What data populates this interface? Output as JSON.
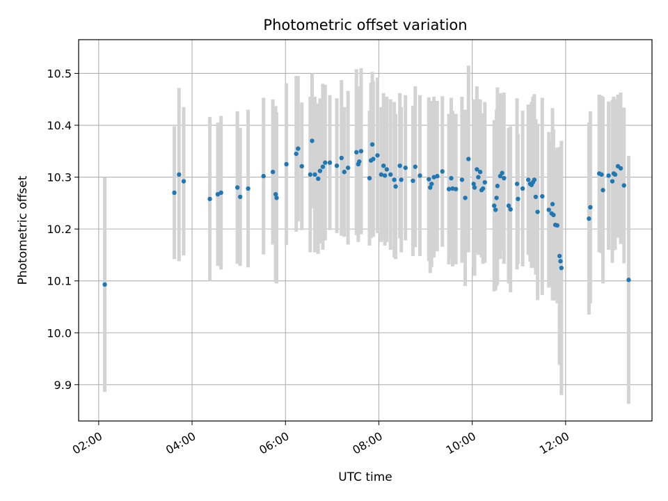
{
  "chart_data": {
    "type": "scatter",
    "title": "Photometric offset variation",
    "xlabel": "UTC time",
    "ylabel": "Photometric offset",
    "x_unit": "hours UTC",
    "xlim": [
      1.57,
      13.85
    ],
    "ylim": [
      9.83,
      10.565
    ],
    "x_ticks": [
      {
        "value": 2,
        "label": "02:00"
      },
      {
        "value": 4,
        "label": "04:00"
      },
      {
        "value": 6,
        "label": "06:00"
      },
      {
        "value": 8,
        "label": "08:00"
      },
      {
        "value": 10,
        "label": "10:00"
      },
      {
        "value": 12,
        "label": "12:00"
      }
    ],
    "y_ticks": [
      {
        "value": 9.9,
        "label": "9.9"
      },
      {
        "value": 10.0,
        "label": "10.0"
      },
      {
        "value": 10.1,
        "label": "10.1"
      },
      {
        "value": 10.2,
        "label": "10.2"
      },
      {
        "value": 10.3,
        "label": "10.3"
      },
      {
        "value": 10.4,
        "label": "10.4"
      },
      {
        "value": 10.5,
        "label": "10.5"
      }
    ],
    "grid": true,
    "marker_color": "#1f77b4",
    "errorbar_color": "#d3d3d3",
    "points": [
      [
        2.13,
        10.093,
        0.207
      ],
      [
        3.62,
        10.27,
        0.128
      ],
      [
        3.72,
        10.305,
        0.167
      ],
      [
        3.82,
        10.292,
        0.143
      ],
      [
        4.38,
        10.258,
        0.158
      ],
      [
        4.55,
        10.267,
        0.138
      ],
      [
        4.62,
        10.27,
        0.148
      ],
      [
        4.97,
        10.28,
        0.147
      ],
      [
        5.03,
        10.262,
        0.133
      ],
      [
        5.2,
        10.278,
        0.152
      ],
      [
        5.53,
        10.302,
        0.151
      ],
      [
        5.73,
        10.31,
        0.14
      ],
      [
        5.79,
        10.267,
        0.17
      ],
      [
        5.81,
        10.26,
        0.165
      ],
      [
        6.02,
        10.325,
        0.156
      ],
      [
        6.23,
        10.345,
        0.15
      ],
      [
        6.27,
        10.355,
        0.14
      ],
      [
        6.35,
        10.321,
        0.123
      ],
      [
        6.53,
        10.305,
        0.15
      ],
      [
        6.57,
        10.37,
        0.13
      ],
      [
        6.63,
        10.305,
        0.15
      ],
      [
        6.7,
        10.297,
        0.145
      ],
      [
        6.74,
        10.312,
        0.14
      ],
      [
        6.8,
        10.32,
        0.16
      ],
      [
        6.85,
        10.328,
        0.15
      ],
      [
        6.95,
        10.328,
        0.13
      ],
      [
        7.1,
        10.322,
        0.13
      ],
      [
        7.2,
        10.337,
        0.15
      ],
      [
        7.26,
        10.31,
        0.125
      ],
      [
        7.34,
        10.318,
        0.148
      ],
      [
        7.52,
        10.348,
        0.16
      ],
      [
        7.56,
        10.325,
        0.15
      ],
      [
        7.58,
        10.33,
        0.14
      ],
      [
        7.62,
        10.35,
        0.16
      ],
      [
        7.8,
        10.298,
        0.13
      ],
      [
        7.83,
        10.332,
        0.15
      ],
      [
        7.86,
        10.363,
        0.14
      ],
      [
        7.88,
        10.335,
        0.15
      ],
      [
        7.97,
        10.342,
        0.15
      ],
      [
        8.05,
        10.305,
        0.13
      ],
      [
        8.1,
        10.322,
        0.14
      ],
      [
        8.13,
        10.303,
        0.135
      ],
      [
        8.17,
        10.315,
        0.14
      ],
      [
        8.25,
        10.305,
        0.145
      ],
      [
        8.33,
        10.295,
        0.15
      ],
      [
        8.36,
        10.282,
        0.14
      ],
      [
        8.45,
        10.322,
        0.14
      ],
      [
        8.48,
        10.295,
        0.14
      ],
      [
        8.57,
        10.318,
        0.14
      ],
      [
        8.73,
        10.293,
        0.145
      ],
      [
        8.78,
        10.32,
        0.155
      ],
      [
        8.88,
        10.303,
        0.155
      ],
      [
        9.07,
        10.296,
        0.158
      ],
      [
        9.1,
        10.28,
        0.165
      ],
      [
        9.13,
        10.287,
        0.16
      ],
      [
        9.18,
        10.3,
        0.155
      ],
      [
        9.25,
        10.302,
        0.145
      ],
      [
        9.36,
        10.311,
        0.145
      ],
      [
        9.5,
        10.277,
        0.145
      ],
      [
        9.55,
        10.298,
        0.155
      ],
      [
        9.58,
        10.278,
        0.15
      ],
      [
        9.65,
        10.277,
        0.145
      ],
      [
        9.78,
        10.295,
        0.16
      ],
      [
        9.85,
        10.26,
        0.17
      ],
      [
        9.92,
        10.335,
        0.18
      ],
      [
        10.03,
        10.287,
        0.16
      ],
      [
        10.05,
        10.28,
        0.17
      ],
      [
        10.1,
        10.315,
        0.16
      ],
      [
        10.13,
        10.3,
        0.15
      ],
      [
        10.17,
        10.31,
        0.14
      ],
      [
        10.2,
        10.275,
        0.13
      ],
      [
        10.23,
        10.278,
        0.145
      ],
      [
        10.27,
        10.29,
        0.155
      ],
      [
        10.47,
        10.245,
        0.165
      ],
      [
        10.5,
        10.237,
        0.155
      ],
      [
        10.52,
        10.26,
        0.17
      ],
      [
        10.54,
        10.283,
        0.19
      ],
      [
        10.6,
        10.302,
        0.16
      ],
      [
        10.64,
        10.308,
        0.15
      ],
      [
        10.68,
        10.298,
        0.165
      ],
      [
        10.78,
        10.245,
        0.15
      ],
      [
        10.82,
        10.238,
        0.16
      ],
      [
        10.96,
        10.287,
        0.165
      ],
      [
        10.98,
        10.258,
        0.125
      ],
      [
        11.08,
        10.278,
        0.15
      ],
      [
        11.2,
        10.295,
        0.145
      ],
      [
        11.24,
        10.287,
        0.15
      ],
      [
        11.27,
        10.285,
        0.16
      ],
      [
        11.3,
        10.29,
        0.165
      ],
      [
        11.33,
        10.295,
        0.165
      ],
      [
        11.36,
        10.262,
        0.15
      ],
      [
        11.4,
        10.233,
        0.17
      ],
      [
        11.5,
        10.263,
        0.19
      ],
      [
        11.64,
        10.237,
        0.15
      ],
      [
        11.7,
        10.23,
        0.14
      ],
      [
        11.72,
        10.248,
        0.185
      ],
      [
        11.74,
        10.227,
        0.165
      ],
      [
        11.78,
        10.208,
        0.145
      ],
      [
        11.82,
        10.207,
        0.15
      ],
      [
        11.87,
        10.148,
        0.21
      ],
      [
        11.89,
        10.138,
        0.2
      ],
      [
        11.91,
        10.125,
        0.245
      ],
      [
        12.5,
        10.22,
        0.185
      ],
      [
        12.53,
        10.242,
        0.185
      ],
      [
        12.72,
        10.307,
        0.152
      ],
      [
        12.77,
        10.305,
        0.152
      ],
      [
        12.8,
        10.275,
        0.18
      ],
      [
        12.92,
        10.303,
        0.143
      ],
      [
        13.0,
        10.292,
        0.157
      ],
      [
        13.03,
        10.307,
        0.148
      ],
      [
        13.06,
        10.305,
        0.145
      ],
      [
        13.12,
        10.321,
        0.138
      ],
      [
        13.18,
        10.317,
        0.146
      ],
      [
        13.25,
        10.284,
        0.15
      ],
      [
        13.35,
        10.102,
        0.239
      ]
    ]
  }
}
